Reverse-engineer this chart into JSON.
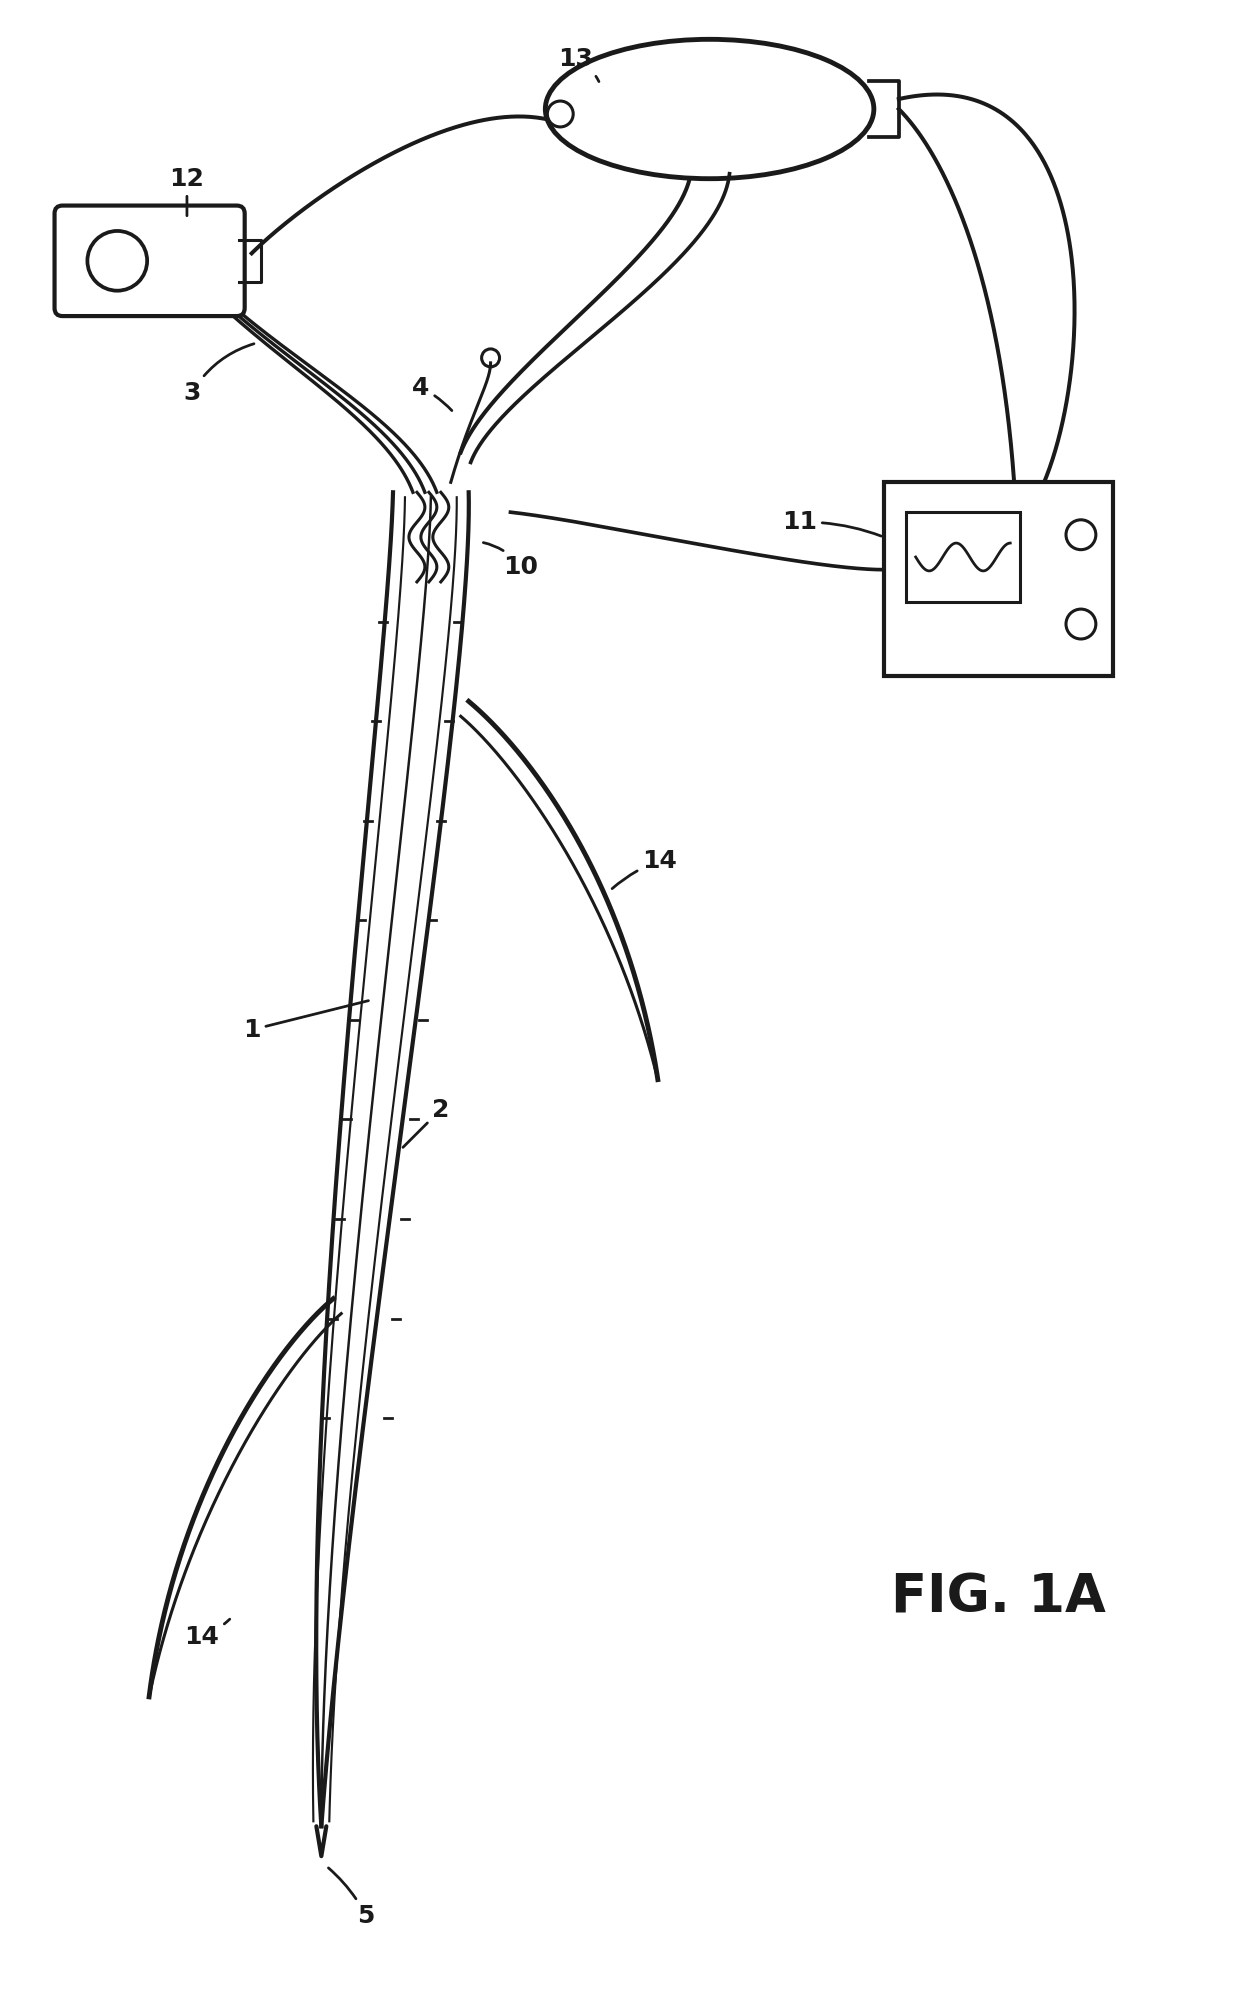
{
  "bg_color": "#ffffff",
  "line_color": "#1a1a1a",
  "lw": 2.2,
  "tlw": 3.0,
  "fig_width": 12.4,
  "fig_height": 19.98,
  "title": "FIG. 1A",
  "label_fs": 18
}
